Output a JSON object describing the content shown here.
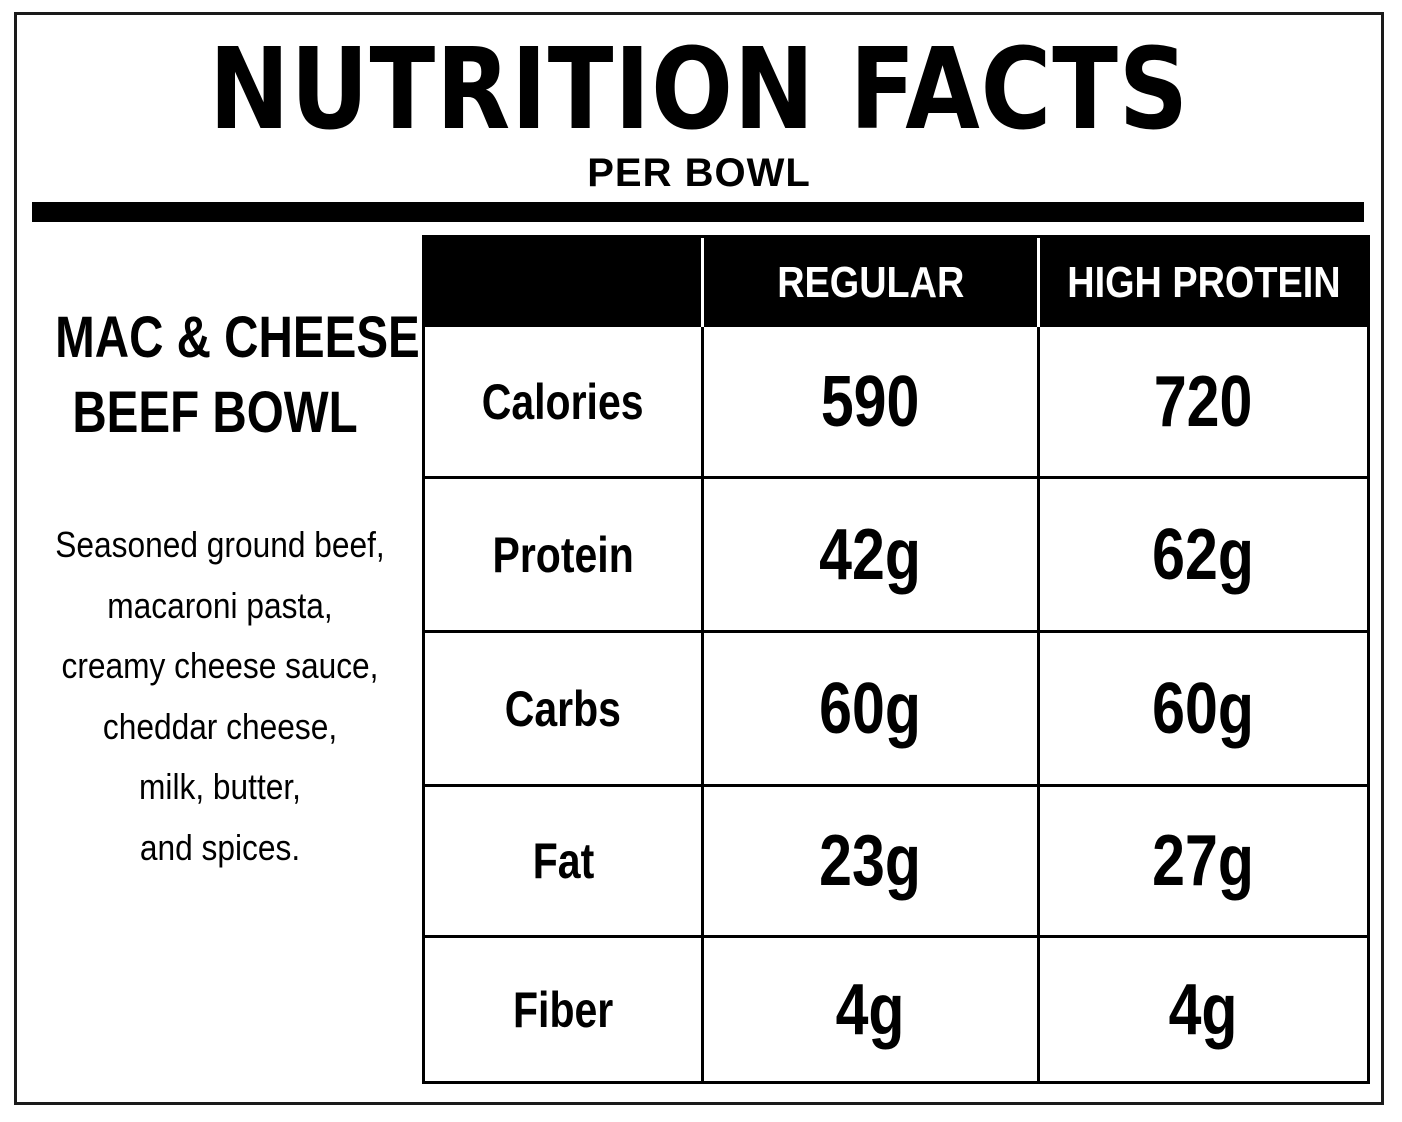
{
  "header": {
    "title": "NUTRITION FACTS",
    "subtitle": "PER BOWL"
  },
  "product": {
    "name_line1": "MAC & CHEESE",
    "name_line2": "BEEF BOWL",
    "ingredients": [
      "Seasoned ground beef,",
      "macaroni pasta,",
      "creamy cheese sauce,",
      "cheddar cheese,",
      "milk, butter,",
      "and spices."
    ]
  },
  "table": {
    "columns": [
      "",
      "REGULAR",
      "HIGH PROTEIN"
    ],
    "rows": [
      {
        "label": "Calories",
        "regular": "590",
        "high_protein": "720"
      },
      {
        "label": "Protein",
        "regular": "42g",
        "high_protein": "62g"
      },
      {
        "label": "Carbs",
        "regular": "60g",
        "high_protein": "60g"
      },
      {
        "label": "Fat",
        "regular": "23g",
        "high_protein": "27g"
      },
      {
        "label": "Fiber",
        "regular": "4g",
        "high_protein": "4g"
      }
    ]
  }
}
